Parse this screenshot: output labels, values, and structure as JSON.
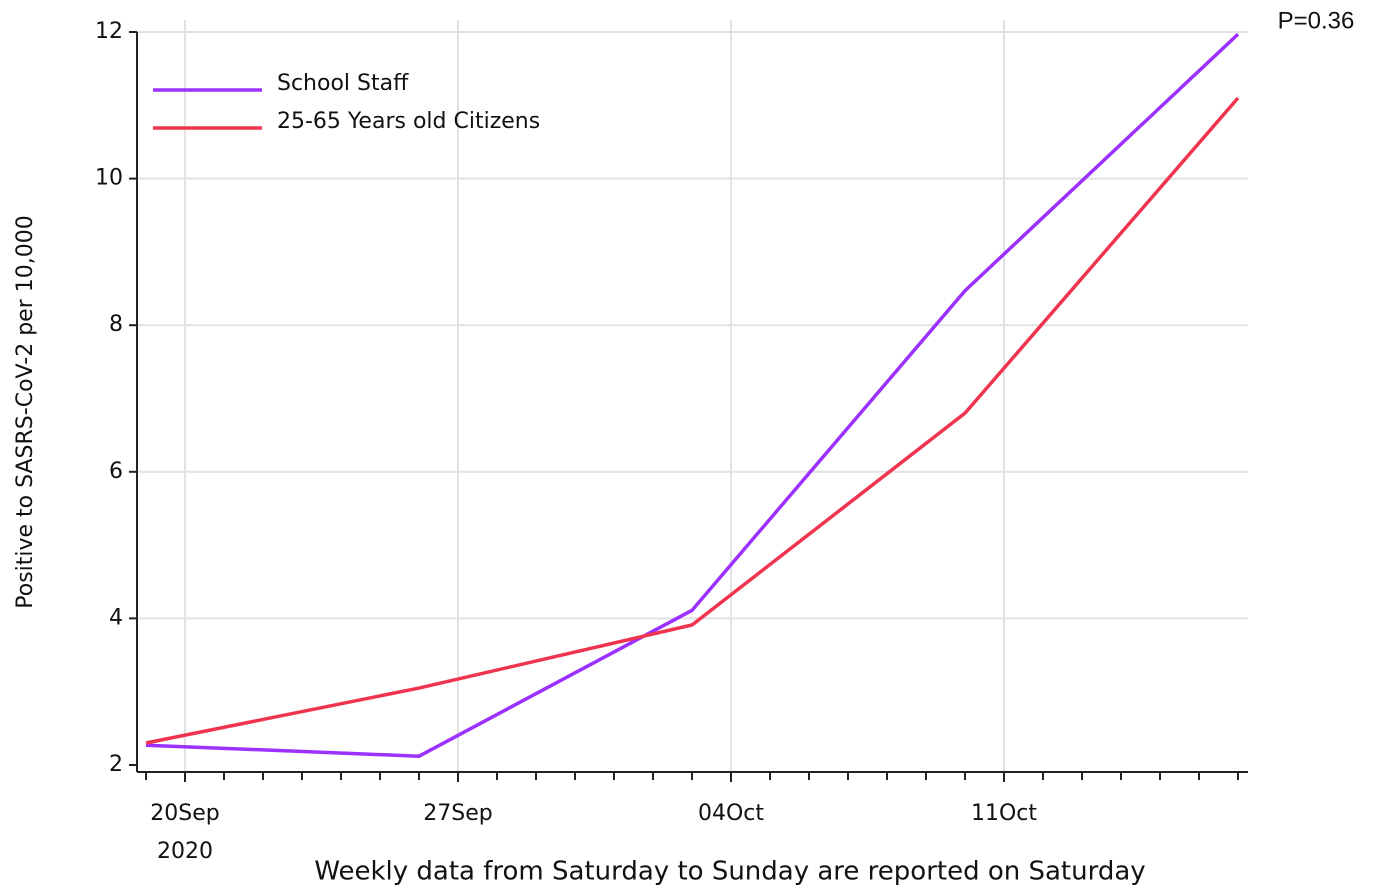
{
  "chart_data": {
    "type": "line",
    "x": [
      "2020-09-19",
      "2020-09-26",
      "2020-10-03",
      "2020-10-10",
      "2020-10-17"
    ],
    "series": [
      {
        "name": "School Staff",
        "color": "#9b30ff",
        "values": [
          2.27,
          2.12,
          4.11,
          8.47,
          11.97
        ]
      },
      {
        "name": "25-65 Years old Citizens",
        "color": "#f0344f",
        "values": [
          2.3,
          3.05,
          3.91,
          6.8,
          11.1
        ]
      }
    ],
    "xlim": [
      "2020-09-19",
      "2020-10-17"
    ],
    "xticks": [
      {
        "value": "2020-09-20",
        "label": "20Sep"
      },
      {
        "value": "2020-09-27",
        "label": "27Sep"
      },
      {
        "value": "2020-10-04",
        "label": "04Oct"
      },
      {
        "value": "2020-10-11",
        "label": "11Oct"
      }
    ],
    "x_year_label": "2020",
    "ylim": [
      2,
      12
    ],
    "yticks": [
      2,
      4,
      6,
      8,
      10,
      12
    ],
    "xlabel": "Weekly data from Saturday to Sunday are reported on Saturday",
    "ylabel": "Positive to SASRS-CoV-2 per 10,000",
    "annotation": "P=0.36",
    "grid": true,
    "legend": "upper left"
  }
}
